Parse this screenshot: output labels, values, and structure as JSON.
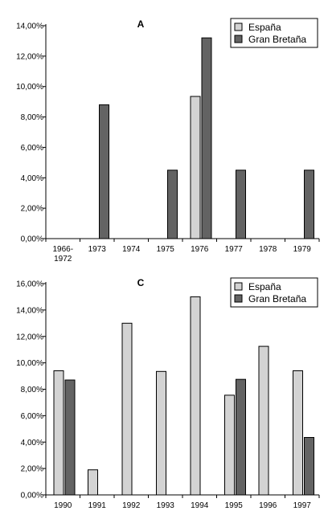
{
  "colors": {
    "espana": "#d3d3d3",
    "gran_bretana": "#636363",
    "axis": "#000000"
  },
  "chart_data": [
    {
      "type": "bar",
      "title": "A",
      "categories": [
        "1966-1972",
        "1973",
        "1974",
        "1975",
        "1976",
        "1977",
        "1978",
        "1979"
      ],
      "series": [
        {
          "name": "España",
          "values": [
            0,
            0,
            0,
            0,
            9.35,
            0,
            0,
            0
          ]
        },
        {
          "name": "Gran Bretaña",
          "values": [
            0,
            8.8,
            0,
            4.5,
            13.2,
            4.5,
            0,
            4.5
          ]
        }
      ],
      "yticks": [
        "0,00%",
        "2,00%",
        "4,00%",
        "6,00%",
        "8,00%",
        "10,00%",
        "12,00%",
        "14,00%"
      ],
      "ylim": [
        0,
        14
      ],
      "xlabel": "",
      "ylabel": "",
      "legend": "top-right",
      "grid": false
    },
    {
      "type": "bar",
      "title": "C",
      "categories": [
        "1990",
        "1991",
        "1992",
        "1993",
        "1994",
        "1995",
        "1996",
        "1997"
      ],
      "series": [
        {
          "name": "España",
          "values": [
            9.4,
            1.9,
            13.0,
            9.35,
            15.0,
            7.55,
            11.25,
            9.4
          ]
        },
        {
          "name": "Gran Bretaña",
          "values": [
            8.7,
            0,
            0,
            0,
            0,
            8.75,
            0,
            4.35
          ]
        }
      ],
      "yticks": [
        "0,00%",
        "2,00%",
        "4,00%",
        "6,00%",
        "8,00%",
        "10,00%",
        "12,00%",
        "14,00%",
        "16,00%"
      ],
      "ylim": [
        0,
        16
      ],
      "xlabel": "",
      "ylabel": "",
      "legend": "top-right",
      "grid": false
    }
  ]
}
